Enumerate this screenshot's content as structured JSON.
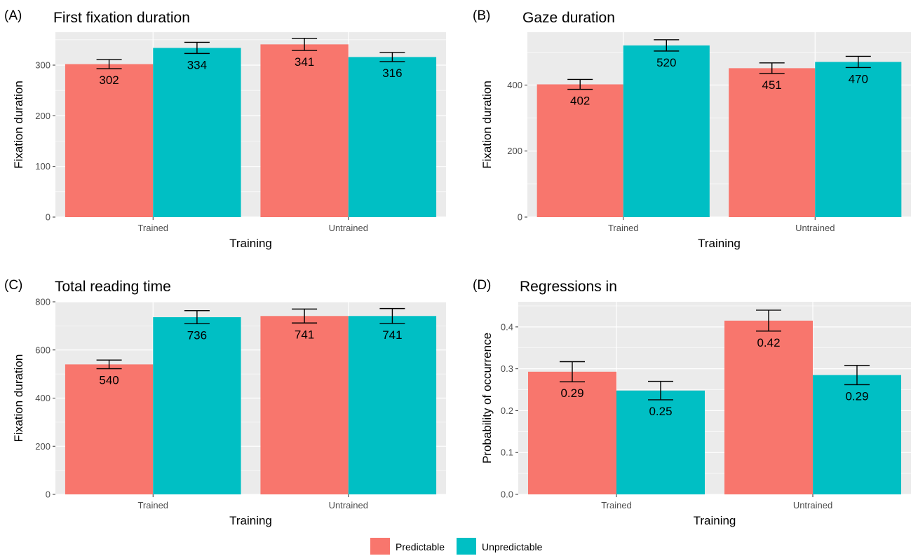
{
  "colors": {
    "predictable": "#F8766D",
    "unpredictable": "#00BFC4",
    "panel_bg": "#EBEBEB",
    "grid": "#FFFFFF"
  },
  "legend": {
    "position": "bottom",
    "items": [
      {
        "key": "predictable",
        "label": "Predictable"
      },
      {
        "key": "unpredictable",
        "label": "Unpredictable"
      }
    ]
  },
  "chart_data": [
    {
      "tag": "(A)",
      "type": "bar",
      "title": "First fixation duration",
      "xlabel": "Training",
      "ylabel": "Fixation duration",
      "categories": [
        "Trained",
        "Untrained"
      ],
      "ylim": [
        0,
        365
      ],
      "yticks": [
        0,
        100,
        200,
        300
      ],
      "ytick_labels": [
        "0",
        "100",
        "200",
        "300"
      ],
      "grid": true,
      "series": [
        {
          "key": "predictable",
          "values": [
            302,
            341
          ],
          "errors": [
            9,
            12
          ],
          "labels": [
            "302",
            "341"
          ]
        },
        {
          "key": "unpredictable",
          "values": [
            334,
            316
          ],
          "errors": [
            11,
            9
          ],
          "labels": [
            "334",
            "316"
          ]
        }
      ]
    },
    {
      "tag": "(B)",
      "type": "bar",
      "title": "Gaze duration",
      "xlabel": "Training",
      "ylabel": "Fixation duration",
      "categories": [
        "Trained",
        "Untrained"
      ],
      "ylim": [
        0,
        560
      ],
      "yticks": [
        0,
        200,
        400
      ],
      "ytick_labels": [
        "0",
        "200",
        "400"
      ],
      "grid": true,
      "series": [
        {
          "key": "predictable",
          "values": [
            402,
            451
          ],
          "errors": [
            15,
            16
          ],
          "labels": [
            "402",
            "451"
          ]
        },
        {
          "key": "unpredictable",
          "values": [
            520,
            470
          ],
          "errors": [
            17,
            17
          ],
          "labels": [
            "520",
            "470"
          ]
        }
      ]
    },
    {
      "tag": "(C)",
      "type": "bar",
      "title": "Total reading time",
      "xlabel": "Training",
      "ylabel": "Fixation duration",
      "categories": [
        "Trained",
        "Untrained"
      ],
      "ylim": [
        0,
        800
      ],
      "yticks": [
        0,
        200,
        400,
        600,
        800
      ],
      "ytick_labels": [
        "0",
        "200",
        "400",
        "600",
        "800"
      ],
      "grid": true,
      "series": [
        {
          "key": "predictable",
          "values": [
            540,
            741
          ],
          "errors": [
            18,
            29
          ],
          "labels": [
            "540",
            "741"
          ]
        },
        {
          "key": "unpredictable",
          "values": [
            736,
            741
          ],
          "errors": [
            27,
            31
          ],
          "labels": [
            "736",
            "741"
          ]
        }
      ]
    },
    {
      "tag": "(D)",
      "type": "bar",
      "title": "Regressions in",
      "xlabel": "Training",
      "ylabel": "Probability of occurrence",
      "categories": [
        "Trained",
        "Untrained"
      ],
      "ylim": [
        0,
        0.46
      ],
      "yticks": [
        0,
        0.1,
        0.2,
        0.3,
        0.4
      ],
      "ytick_labels": [
        "0.0",
        "0.1",
        "0.2",
        "0.3",
        "0.4"
      ],
      "grid": true,
      "series": [
        {
          "key": "predictable",
          "values": [
            0.293,
            0.415
          ],
          "errors": [
            0.024,
            0.025
          ],
          "labels": [
            "0.29",
            "0.42"
          ]
        },
        {
          "key": "unpredictable",
          "values": [
            0.248,
            0.285
          ],
          "errors": [
            0.022,
            0.023
          ],
          "labels": [
            "0.25",
            "0.29"
          ]
        }
      ]
    }
  ]
}
